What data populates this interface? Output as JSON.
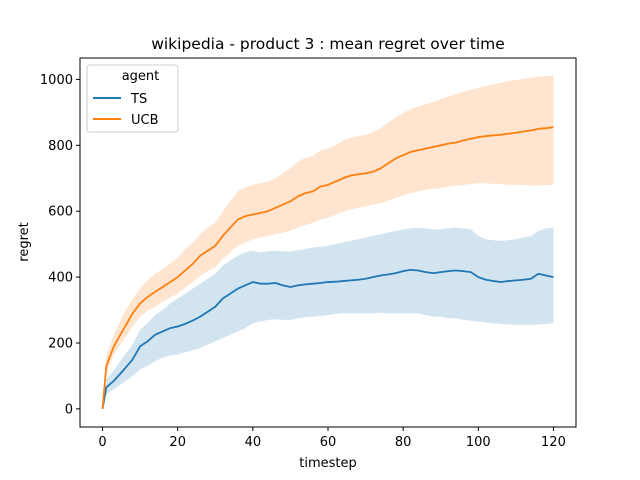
{
  "chart_data": {
    "type": "line",
    "title": "wikipedia - product 3 : mean regret over time",
    "xlabel": "timestep",
    "ylabel": "regret",
    "xlim": [
      -6,
      126
    ],
    "ylim": [
      -55,
      1065
    ],
    "xticks": [
      0,
      20,
      40,
      60,
      80,
      100,
      120
    ],
    "yticks": [
      0,
      200,
      400,
      600,
      800,
      1000
    ],
    "grid": false,
    "legend": {
      "title": "agent",
      "placement": "top-left"
    },
    "series": [
      {
        "name": "TS",
        "color": "#1f77b4",
        "band_color": "#1f77b4",
        "x": [
          0,
          1,
          3,
          5,
          8,
          10,
          12,
          14,
          16,
          18,
          20,
          22,
          24,
          26,
          28,
          30,
          32,
          34,
          36,
          38,
          40,
          42,
          44,
          46,
          48,
          50,
          52,
          54,
          56,
          58,
          60,
          62,
          64,
          66,
          68,
          70,
          72,
          74,
          76,
          78,
          80,
          82,
          84,
          86,
          88,
          90,
          92,
          94,
          96,
          98,
          100,
          102,
          104,
          106,
          108,
          110,
          112,
          114,
          116,
          118,
          120
        ],
        "values": [
          0,
          65,
          85,
          110,
          150,
          190,
          205,
          225,
          235,
          245,
          250,
          258,
          268,
          280,
          295,
          310,
          335,
          350,
          365,
          375,
          385,
          380,
          380,
          382,
          375,
          370,
          375,
          378,
          380,
          382,
          385,
          386,
          388,
          390,
          392,
          395,
          400,
          405,
          408,
          412,
          418,
          422,
          420,
          415,
          412,
          415,
          418,
          420,
          418,
          415,
          400,
          392,
          388,
          385,
          388,
          390,
          392,
          395,
          410,
          405,
          400
        ],
        "lower": [
          0,
          45,
          60,
          75,
          100,
          120,
          130,
          145,
          155,
          162,
          165,
          172,
          178,
          185,
          195,
          205,
          215,
          225,
          235,
          245,
          260,
          265,
          270,
          272,
          270,
          270,
          275,
          278,
          280,
          282,
          285,
          288,
          290,
          290,
          290,
          290,
          290,
          292,
          290,
          290,
          290,
          290,
          290,
          285,
          280,
          280,
          275,
          275,
          270,
          268,
          265,
          262,
          260,
          258,
          256,
          255,
          255,
          255,
          256,
          258,
          260
        ],
        "upper": [
          0,
          90,
          115,
          150,
          195,
          240,
          260,
          285,
          300,
          320,
          335,
          350,
          365,
          380,
          395,
          410,
          435,
          450,
          465,
          475,
          480,
          475,
          478,
          480,
          478,
          478,
          482,
          485,
          490,
          492,
          495,
          500,
          505,
          510,
          515,
          520,
          525,
          530,
          535,
          540,
          545,
          548,
          550,
          548,
          545,
          545,
          548,
          550,
          548,
          545,
          525,
          515,
          512,
          510,
          512,
          515,
          520,
          525,
          540,
          548,
          550
        ]
      },
      {
        "name": "UCB",
        "color": "#ff7f0e",
        "band_color": "#ff7f0e",
        "x": [
          0,
          1,
          3,
          5,
          8,
          10,
          12,
          14,
          16,
          18,
          20,
          22,
          24,
          26,
          28,
          30,
          32,
          34,
          36,
          38,
          40,
          42,
          44,
          46,
          48,
          50,
          52,
          54,
          56,
          58,
          60,
          62,
          64,
          66,
          68,
          70,
          72,
          74,
          76,
          78,
          80,
          82,
          84,
          86,
          88,
          90,
          92,
          94,
          96,
          98,
          100,
          102,
          104,
          106,
          108,
          110,
          112,
          114,
          116,
          118,
          120
        ],
        "values": [
          0,
          130,
          190,
          230,
          290,
          320,
          340,
          355,
          370,
          385,
          400,
          420,
          440,
          465,
          480,
          495,
          525,
          550,
          575,
          585,
          590,
          595,
          600,
          610,
          620,
          630,
          645,
          655,
          660,
          675,
          680,
          690,
          700,
          708,
          712,
          715,
          720,
          730,
          745,
          760,
          770,
          780,
          785,
          790,
          795,
          800,
          805,
          808,
          815,
          820,
          825,
          828,
          830,
          832,
          835,
          838,
          842,
          845,
          850,
          852,
          855
        ],
        "lower": [
          0,
          105,
          165,
          200,
          250,
          280,
          298,
          310,
          325,
          338,
          350,
          368,
          385,
          405,
          418,
          430,
          455,
          475,
          495,
          505,
          515,
          520,
          525,
          530,
          535,
          540,
          550,
          558,
          565,
          575,
          580,
          590,
          598,
          605,
          610,
          615,
          620,
          625,
          632,
          640,
          648,
          655,
          660,
          665,
          668,
          670,
          675,
          678,
          680,
          682,
          685,
          685,
          683,
          682,
          680,
          680,
          680,
          678,
          678,
          679,
          680
        ],
        "upper": [
          0,
          160,
          225,
          275,
          335,
          365,
          390,
          410,
          425,
          440,
          460,
          485,
          505,
          530,
          550,
          565,
          600,
          630,
          660,
          672,
          680,
          685,
          690,
          700,
          715,
          730,
          750,
          762,
          768,
          785,
          790,
          800,
          815,
          822,
          828,
          832,
          840,
          852,
          868,
          885,
          898,
          910,
          918,
          925,
          932,
          940,
          948,
          955,
          962,
          968,
          975,
          980,
          985,
          990,
          995,
          998,
          1002,
          1005,
          1008,
          1010,
          1012
        ]
      }
    ]
  }
}
